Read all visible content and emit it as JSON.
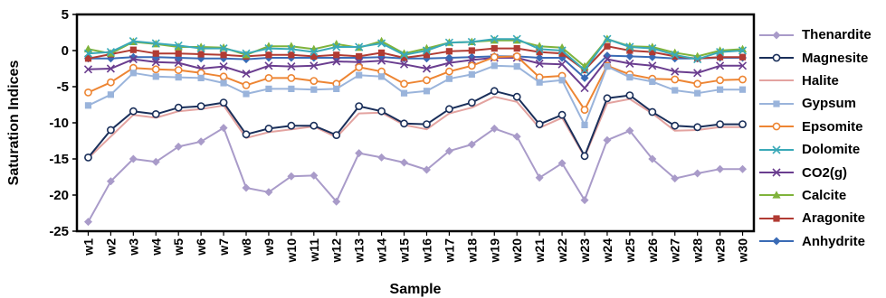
{
  "chart_data": {
    "type": "line",
    "title": "",
    "xlabel": "Sample",
    "ylabel": "Saturation Indices",
    "ylim": [
      -25,
      5
    ],
    "yticks": [
      "5",
      "0",
      "-5",
      "-10",
      "-15",
      "-20",
      "-25"
    ],
    "ytick_values": [
      5,
      0,
      -5,
      -10,
      -15,
      -20,
      -25
    ],
    "grid": false,
    "legend_position": "right",
    "categories": [
      "w1",
      "w2",
      "w3",
      "w4",
      "w5",
      "w6",
      "w7",
      "w8",
      "w9",
      "w10",
      "w11",
      "w12",
      "w13",
      "w14",
      "w15",
      "w16",
      "w17",
      "w18",
      "w19",
      "w20",
      "w21",
      "w22",
      "w23",
      "w24",
      "w25",
      "w26",
      "w27",
      "w28",
      "w29",
      "w30"
    ],
    "series": [
      {
        "name": "Thenardite",
        "color": "#a99bc9",
        "marker": "diamond",
        "values": [
          -23.7,
          -18.1,
          -15.0,
          -15.4,
          -13.3,
          -12.6,
          -10.7,
          -19.0,
          -19.6,
          -17.4,
          -17.3,
          -20.9,
          -14.2,
          -14.8,
          -15.5,
          -16.5,
          -13.9,
          -13.0,
          -10.8,
          -11.9,
          -17.6,
          -15.6,
          -20.7,
          -12.4,
          -11.1,
          -15.0,
          -17.7,
          -17.0,
          -16.4,
          -16.4
        ]
      },
      {
        "name": "Magnesite",
        "color": "#1a2f5a",
        "marker": "circle",
        "values": [
          -14.8,
          -11.0,
          -8.4,
          -8.8,
          -7.9,
          -7.7,
          -7.2,
          -11.6,
          -10.8,
          -10.4,
          -10.4,
          -11.7,
          -7.7,
          -8.4,
          -10.1,
          -10.2,
          -8.1,
          -7.2,
          -5.6,
          -6.4,
          -10.2,
          -8.9,
          -14.6,
          -6.6,
          -6.2,
          -8.5,
          -10.4,
          -10.6,
          -10.2,
          -10.2
        ]
      },
      {
        "name": "Halite",
        "color": "#e3a3a0",
        "marker": "none",
        "values": [
          -14.9,
          -11.9,
          -8.9,
          -9.3,
          -8.4,
          -8.1,
          -7.6,
          -12.1,
          -11.3,
          -10.9,
          -10.5,
          -12.0,
          -8.7,
          -8.6,
          -10.3,
          -10.9,
          -8.7,
          -7.9,
          -6.4,
          -7.1,
          -10.7,
          -9.3,
          -14.7,
          -7.3,
          -6.7,
          -8.7,
          -11.1,
          -11.0,
          -10.6,
          -10.6
        ]
      },
      {
        "name": "Gypsum",
        "color": "#9ab4db",
        "marker": "square",
        "values": [
          -7.6,
          -6.1,
          -3.1,
          -3.6,
          -3.7,
          -3.8,
          -4.5,
          -6.0,
          -5.3,
          -5.3,
          -5.4,
          -5.3,
          -3.4,
          -3.6,
          -5.9,
          -5.6,
          -3.9,
          -3.3,
          -2.1,
          -2.2,
          -4.4,
          -4.1,
          -10.3,
          -2.2,
          -3.7,
          -4.3,
          -5.5,
          -5.9,
          -5.4,
          -5.4
        ]
      },
      {
        "name": "Epsomite",
        "color": "#ed8533",
        "marker": "circle",
        "values": [
          -5.8,
          -4.4,
          -2.4,
          -2.6,
          -2.7,
          -3.1,
          -3.6,
          -4.8,
          -3.8,
          -3.8,
          -4.2,
          -4.6,
          -2.3,
          -2.9,
          -4.6,
          -4.1,
          -2.9,
          -2.1,
          -0.9,
          -0.8,
          -3.7,
          -3.5,
          -8.2,
          -2.1,
          -3.3,
          -3.9,
          -4.0,
          -4.6,
          -4.1,
          -4.0
        ]
      },
      {
        "name": "Dolomite",
        "color": "#3aa9b8",
        "marker": "x",
        "values": [
          -0.4,
          -0.2,
          1.3,
          1.0,
          0.7,
          0.3,
          0.3,
          -0.4,
          0.3,
          0.2,
          -0.2,
          0.5,
          0.5,
          1.0,
          -0.6,
          0.0,
          1.1,
          1.2,
          1.6,
          1.6,
          0.2,
          0.0,
          -2.7,
          1.6,
          0.5,
          0.3,
          -0.6,
          -1.2,
          -0.2,
          0.0
        ]
      },
      {
        "name": "CO2(g)",
        "color": "#6a3d8f",
        "marker": "x",
        "values": [
          -2.6,
          -2.5,
          -1.2,
          -1.6,
          -1.7,
          -2.5,
          -2.2,
          -3.2,
          -2.1,
          -2.2,
          -2.1,
          -1.5,
          -1.6,
          -1.4,
          -1.9,
          -2.5,
          -1.7,
          -1.3,
          -1.0,
          -1.0,
          -1.8,
          -1.9,
          -5.2,
          -1.2,
          -1.8,
          -2.1,
          -2.9,
          -3.1,
          -2.1,
          -2.1
        ]
      },
      {
        "name": "Calcite",
        "color": "#7fb33b",
        "marker": "triangle",
        "values": [
          0.2,
          -0.4,
          1.2,
          0.9,
          0.5,
          0.5,
          0.4,
          -0.6,
          0.6,
          0.6,
          0.2,
          0.9,
          0.4,
          1.3,
          -0.4,
          0.3,
          1.1,
          1.2,
          1.4,
          1.4,
          0.6,
          0.4,
          -2.2,
          1.6,
          0.6,
          0.5,
          -0.3,
          -0.8,
          0.0,
          0.2
        ]
      },
      {
        "name": "Aragonite",
        "color": "#b13b33",
        "marker": "square",
        "values": [
          -1.1,
          -0.5,
          0.1,
          -0.4,
          -0.4,
          -0.5,
          -0.6,
          -0.8,
          -0.6,
          -0.6,
          -0.8,
          -0.6,
          -0.8,
          -0.3,
          -1.0,
          -0.6,
          -0.1,
          0.0,
          0.3,
          0.3,
          -0.2,
          -0.4,
          -2.7,
          0.6,
          0.0,
          -0.2,
          -0.8,
          -1.1,
          -0.9,
          -0.9
        ]
      },
      {
        "name": "Anhydrite",
        "color": "#3a6bb5",
        "marker": "diamond",
        "values": [
          -1.1,
          -1.1,
          -0.9,
          -0.9,
          -1.0,
          -1.1,
          -1.1,
          -1.2,
          -1.0,
          -1.0,
          -1.0,
          -1.0,
          -1.0,
          -0.9,
          -1.1,
          -1.1,
          -1.0,
          -0.9,
          -0.8,
          -0.8,
          -1.0,
          -1.0,
          -3.8,
          -0.7,
          -0.8,
          -0.9,
          -1.1,
          -1.1,
          -1.0,
          -1.0
        ]
      }
    ]
  }
}
